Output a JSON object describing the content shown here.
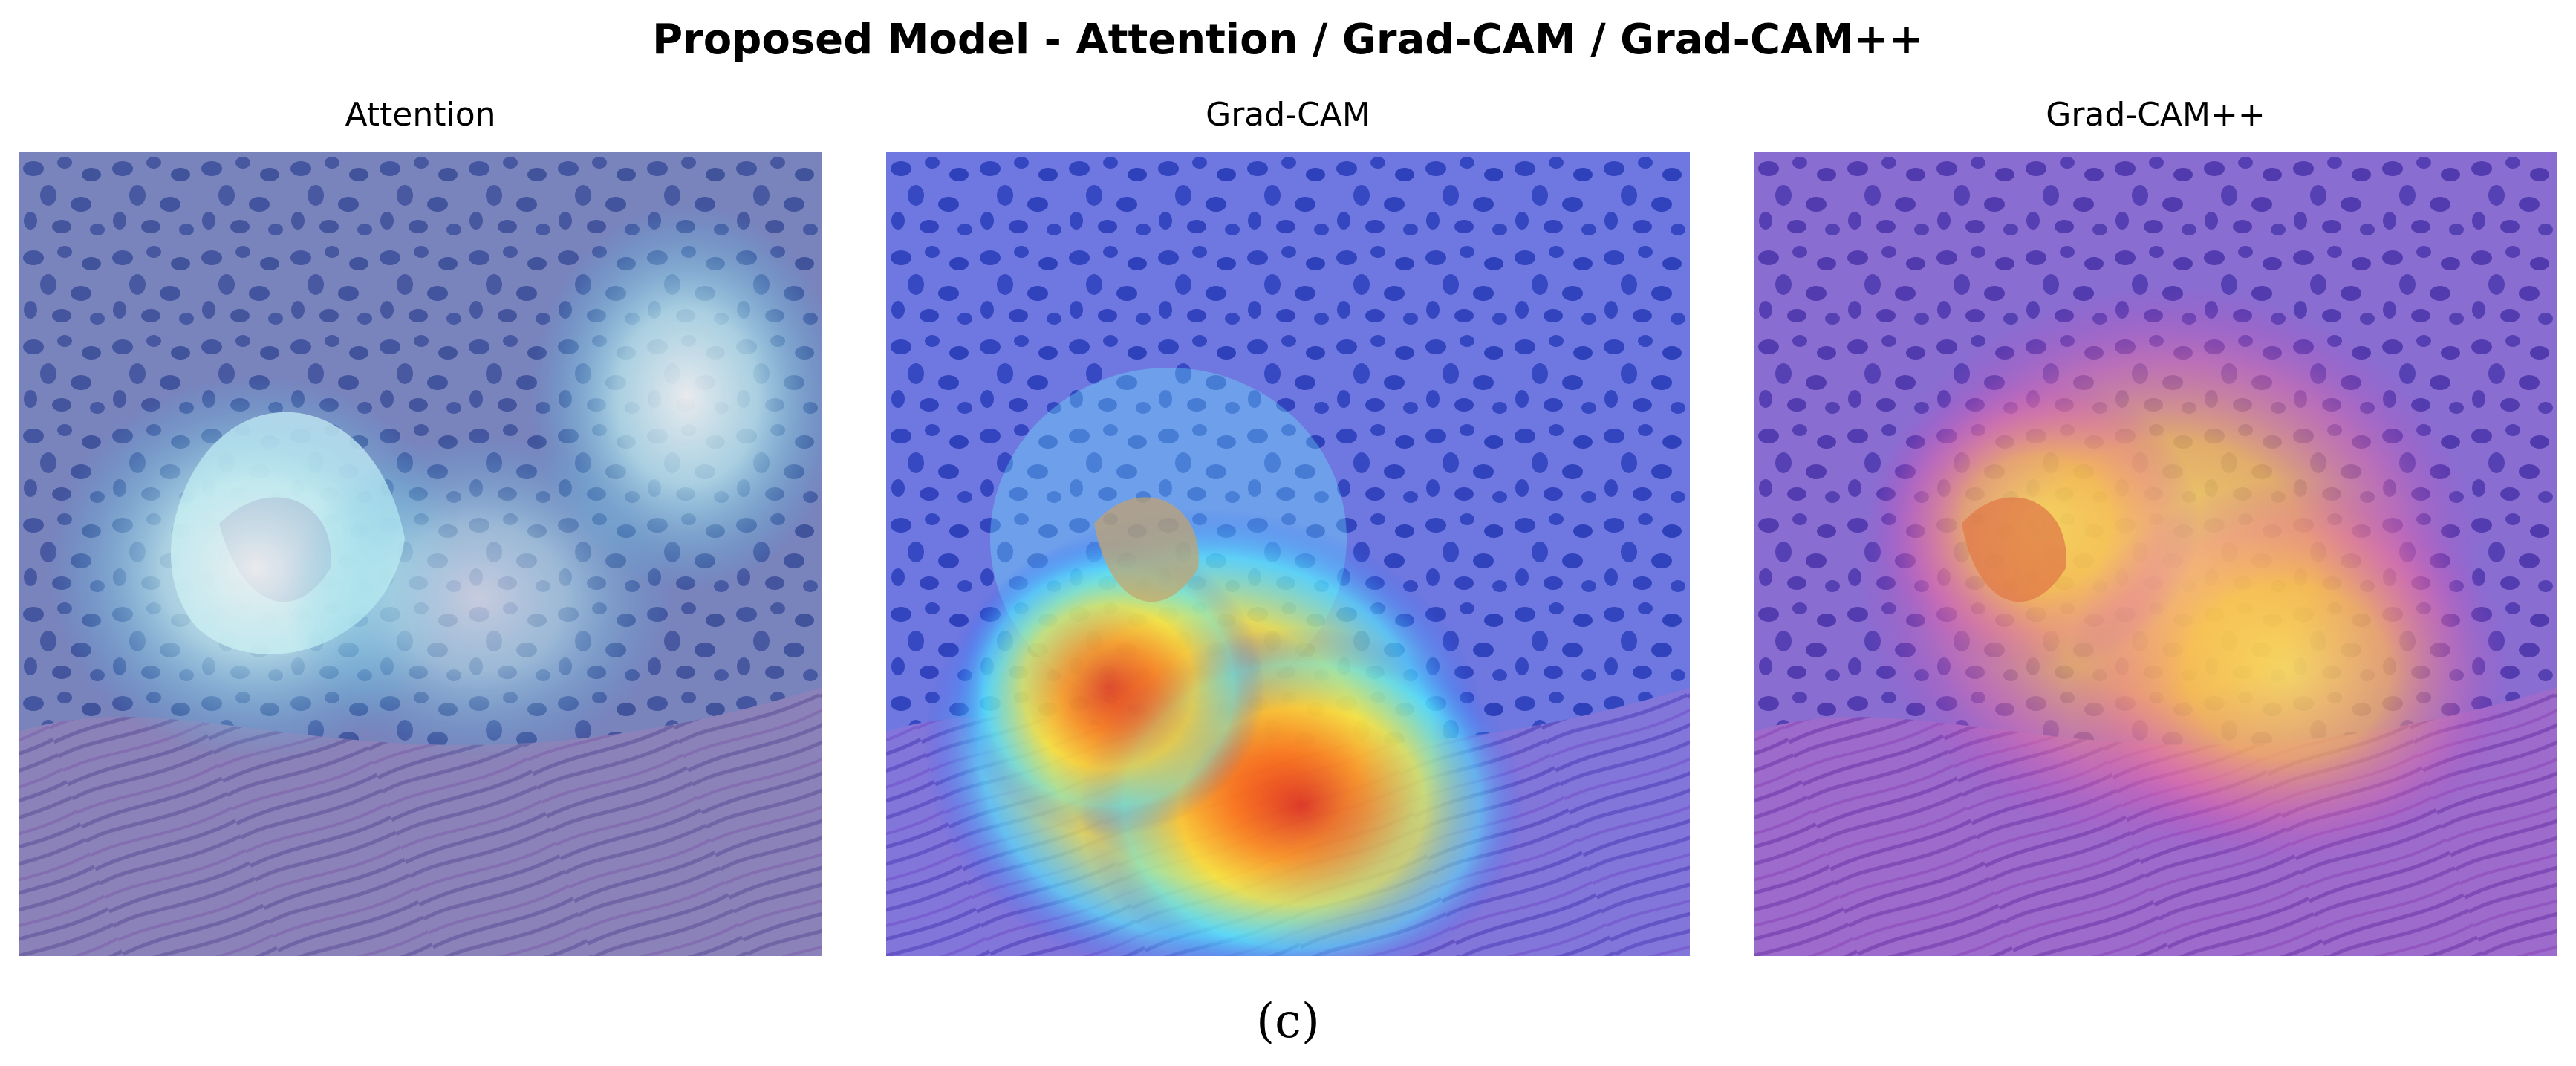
{
  "figure": {
    "title": "Proposed Model - Attention / Grad-CAM / Grad-CAM++",
    "caption": "(c)",
    "panels": [
      {
        "title": "Attention",
        "overlay": "attention-map",
        "colormap": "cool-white"
      },
      {
        "title": "Grad-CAM",
        "overlay": "gradcam-map",
        "colormap": "jet"
      },
      {
        "title": "Grad-CAM++",
        "overlay": "gradcampp-map",
        "colormap": "plasma"
      }
    ],
    "colors": {
      "tissue_base": "#7e86c8",
      "nuclei": "#2a3f9e",
      "stroma": "#b07ac0",
      "attention_glow": "#e8ffff",
      "gradcam_hot": "#e8182a",
      "gradcampp_hot": "#ffe25a"
    }
  }
}
